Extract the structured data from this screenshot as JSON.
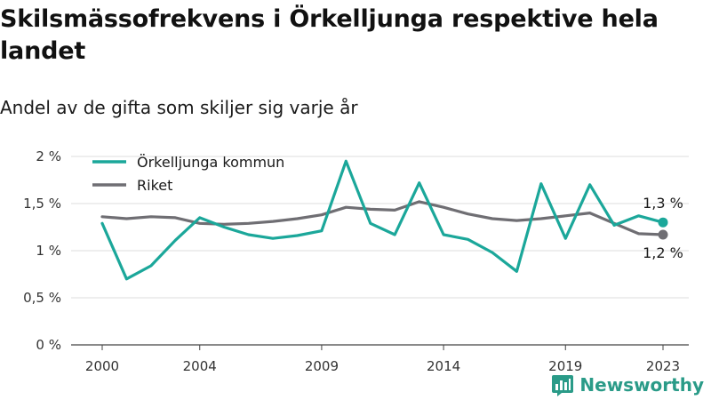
{
  "title": "Skilsmässofrekvens i Örkelljunga respektive hela landet",
  "subtitle": "Andel av de gifta som skiljer sig varje år",
  "brand": {
    "name": "Newsworthy",
    "color": "#2a9b88"
  },
  "chart_data": {
    "type": "line",
    "x": [
      2000,
      2001,
      2002,
      2003,
      2004,
      2005,
      2006,
      2007,
      2008,
      2009,
      2010,
      2011,
      2012,
      2013,
      2014,
      2015,
      2016,
      2017,
      2018,
      2019,
      2020,
      2021,
      2022,
      2023
    ],
    "x_ticks": [
      "2000",
      "2004",
      "2009",
      "2014",
      "2019",
      "2023"
    ],
    "y_ticks": [
      "0 %",
      "0,5 %",
      "1 %",
      "1,5 %",
      "2 %"
    ],
    "ylim": [
      0,
      2
    ],
    "grid": true,
    "legend_position": "top-left",
    "series": [
      {
        "name": "Örkelljunga kommun",
        "color": "#1ba79a",
        "values": [
          1.29,
          0.7,
          0.84,
          1.11,
          1.35,
          1.25,
          1.17,
          1.13,
          1.16,
          1.21,
          1.95,
          1.29,
          1.17,
          1.72,
          1.17,
          1.12,
          0.98,
          0.78,
          1.71,
          1.13,
          1.7,
          1.27,
          1.37,
          1.3
        ],
        "end_label": "1,3 %"
      },
      {
        "name": "Riket",
        "color": "#6f6e73",
        "values": [
          1.36,
          1.34,
          1.36,
          1.35,
          1.29,
          1.28,
          1.29,
          1.31,
          1.34,
          1.38,
          1.46,
          1.44,
          1.43,
          1.52,
          1.46,
          1.39,
          1.34,
          1.32,
          1.34,
          1.37,
          1.4,
          1.29,
          1.18,
          1.17
        ],
        "end_label": "1,2 %"
      }
    ]
  }
}
